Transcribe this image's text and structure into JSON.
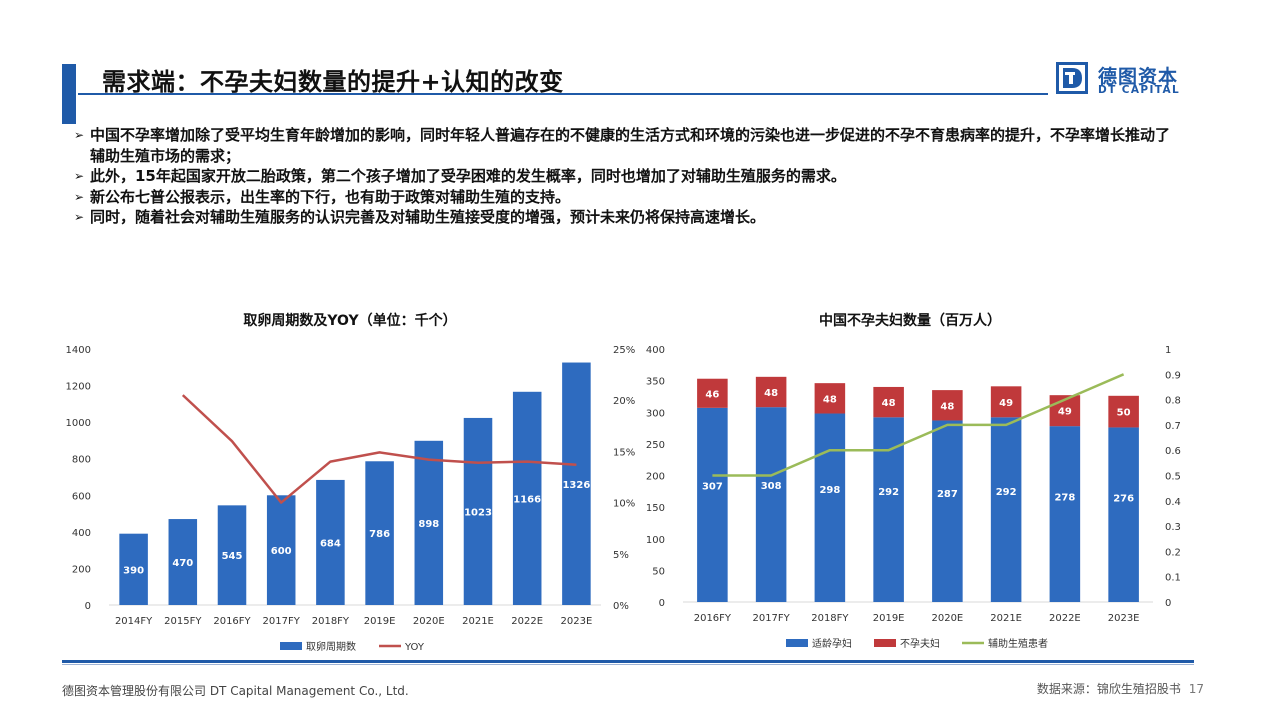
{
  "header": {
    "title": "需求端：不孕夫妇数量的提升+认知的改变"
  },
  "logo": {
    "name": "德图资本",
    "english": "DT CAPITAL",
    "icon": "dt-logo-icon",
    "color": "#1f5aa8"
  },
  "bullets": [
    "中国不孕率增加除了受平均生育年龄增加的影响，同时年轻人普遍存在的不健康的生活方式和环境的污染也进一步促进的不孕不育患病率的提升，不孕率增长推动了辅助生殖市场的需求；",
    "此外，15年起国家开放二胎政策，第二个孩子增加了受孕困难的发生概率，同时也增加了对辅助生殖服务的需求。",
    "新公布七普公报表示，出生率的下行，也有助于政策对辅助生殖的支持。",
    "同时，随着社会对辅助生殖服务的认识完善及对辅助生殖接受度的增强，预计未来仍将保持高速增长。"
  ],
  "chart_data": [
    {
      "type": "bar",
      "title": "取卵周期数及YOY（单位：千个）",
      "categories": [
        "2014FY",
        "2015FY",
        "2016FY",
        "2017FY",
        "2018FY",
        "2019E",
        "2020E",
        "2021E",
        "2022E",
        "2023E"
      ],
      "series": [
        {
          "name": "取卵周期数",
          "kind": "bar",
          "axis": "left",
          "color": "#2e6bbf",
          "values": [
            390,
            470,
            545,
            600,
            684,
            786,
            898,
            1023,
            1166,
            1326
          ]
        },
        {
          "name": "YOY",
          "kind": "line",
          "axis": "right",
          "color": "#c0504d",
          "values": [
            null,
            0.205,
            0.16,
            0.1,
            0.14,
            0.149,
            0.142,
            0.139,
            0.14,
            0.137
          ]
        }
      ],
      "y_left": {
        "min": 0,
        "max": 1400,
        "ticks": [
          "0",
          "200",
          "400",
          "600",
          "800",
          "1000",
          "1200",
          "1400"
        ]
      },
      "y_right": {
        "min": 0,
        "max": 0.25,
        "ticks": [
          "0%",
          "5%",
          "10%",
          "15%",
          "20%",
          "25%"
        ]
      },
      "legend": "bottom",
      "grid": false
    },
    {
      "type": "bar",
      "stacked": true,
      "title": "中国不孕夫妇数量（百万人）",
      "categories": [
        "2016FY",
        "2017FY",
        "2018FY",
        "2019E",
        "2020E",
        "2021E",
        "2022E",
        "2023E"
      ],
      "series": [
        {
          "name": "适龄孕妇",
          "kind": "bar",
          "axis": "left",
          "color": "#2e6bbf",
          "values": [
            307,
            308,
            298,
            292,
            287,
            292,
            278,
            276
          ]
        },
        {
          "name": "不孕夫妇",
          "kind": "bar",
          "axis": "left",
          "color": "#c0393b",
          "values": [
            46,
            48,
            48,
            48,
            48,
            49,
            49,
            50
          ]
        },
        {
          "name": "辅助生殖患者",
          "kind": "line",
          "axis": "right",
          "color": "#9bbb59",
          "values": [
            0.5,
            0.5,
            0.6,
            0.6,
            0.7,
            0.7,
            0.8,
            0.9
          ]
        }
      ],
      "y_left": {
        "min": 0,
        "max": 400,
        "ticks": [
          "0",
          "50",
          "100",
          "150",
          "200",
          "250",
          "300",
          "350",
          "400"
        ]
      },
      "y_right": {
        "min": 0,
        "max": 1,
        "ticks": [
          "0",
          "0.1",
          "0.2",
          "0.3",
          "0.4",
          "0.5",
          "0.6",
          "0.7",
          "0.8",
          "0.9",
          "1"
        ]
      },
      "legend": "bottom",
      "grid": false
    }
  ],
  "footer": {
    "company": "德图资本管理股份有限公司 DT Capital Management Co., Ltd.",
    "source": "数据来源：锦欣生殖招股书",
    "page": "17"
  }
}
